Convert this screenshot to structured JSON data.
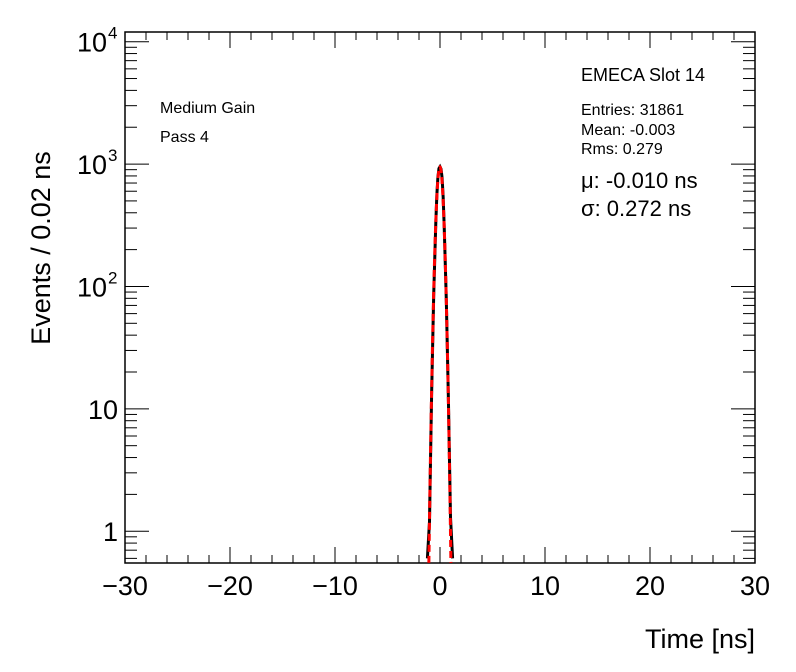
{
  "chart_data": {
    "type": "line",
    "title": "",
    "xlabel": "Time [ns]",
    "ylabel": "Events / 0.02 ns",
    "xlim": [
      -30,
      30
    ],
    "ylim": [
      0.55,
      12000
    ],
    "yscale": "log",
    "grid": false,
    "x_ticks": [
      -30,
      -20,
      -10,
      0,
      10,
      20,
      30
    ],
    "x_tick_labels": [
      "−30",
      "−20",
      "−10",
      "0",
      "10",
      "20",
      "30"
    ],
    "y_ticks": [
      {
        "value": 1,
        "base": "1",
        "exp": ""
      },
      {
        "value": 10,
        "base": "10",
        "exp": ""
      },
      {
        "value": 100,
        "base": "10",
        "exp": "2"
      },
      {
        "value": 1000,
        "base": "10",
        "exp": "3"
      },
      {
        "value": 10000,
        "base": "10",
        "exp": "4"
      }
    ],
    "series": [
      {
        "kind": "histogram",
        "color": "#000000",
        "x": [
          -1.2,
          -1.0,
          -0.8,
          -0.6,
          -0.4,
          -0.3,
          -0.2,
          -0.1,
          0.0,
          0.1,
          0.2,
          0.3,
          0.4,
          0.6,
          0.8,
          1.0,
          1.2
        ],
        "y": [
          0.6,
          1.2,
          13,
          85,
          330,
          560,
          780,
          920,
          950,
          910,
          770,
          540,
          310,
          78,
          12,
          1.3,
          0.6
        ]
      },
      {
        "kind": "fit",
        "color": "#ff0000",
        "dashed": true,
        "function": "gaussian",
        "amplitude": 950,
        "mean": -0.01,
        "sigma": 0.272
      }
    ],
    "annotations": {
      "gain": "Medium Gain",
      "pass": "Pass 4",
      "slot": "EMECA Slot 14",
      "entries": "Entries: 31861",
      "mean": "Mean: -0.003",
      "rms": "Rms: 0.279",
      "mu": "μ: -0.010 ns",
      "sigma": "σ: 0.272 ns"
    }
  }
}
